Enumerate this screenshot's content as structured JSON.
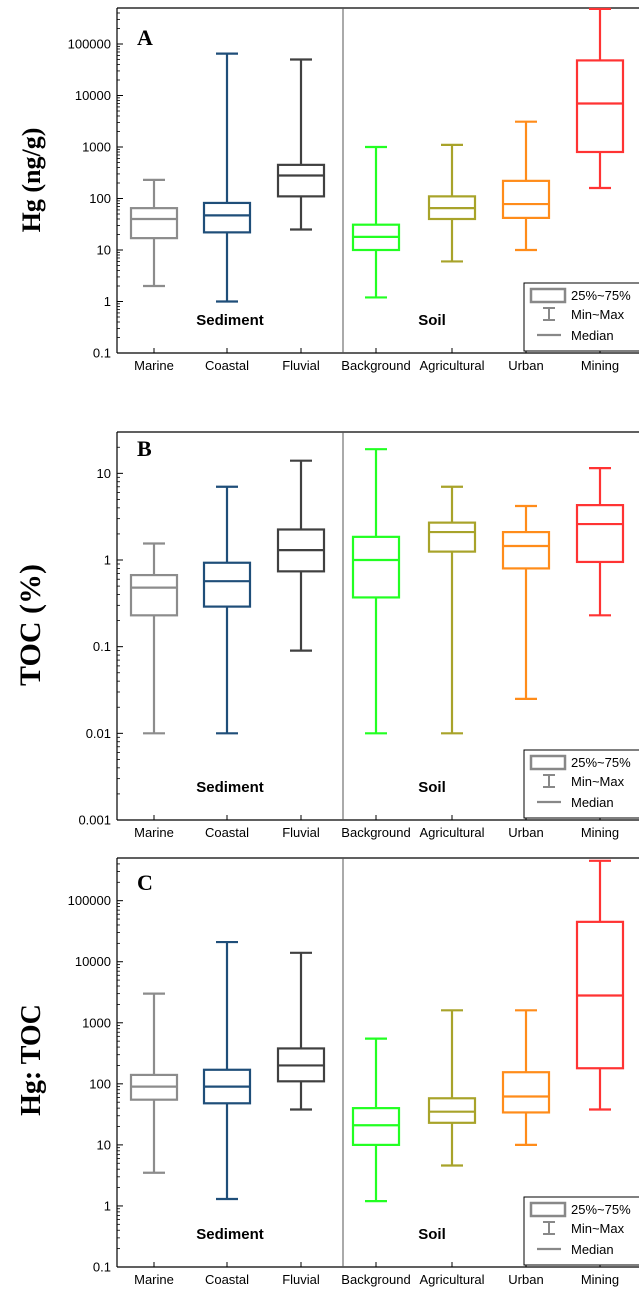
{
  "figure": {
    "group_labels": [
      "Sediment",
      "Soil"
    ],
    "legend": {
      "box": "25%~75%",
      "whisker": "Min~Max",
      "median": "Median"
    }
  },
  "chart_data": [
    {
      "type": "box",
      "panel": "A",
      "ylabel": "Hg (ng/g)",
      "yscale": "log",
      "ylim": [
        0.1,
        500000
      ],
      "yticks": [
        0.1,
        1,
        10,
        100,
        1000,
        10000,
        100000
      ],
      "ytick_labels": [
        "0.1",
        "1",
        "10",
        "100",
        "1000",
        "10000",
        "100000"
      ],
      "categories": [
        "Marine",
        "Coastal",
        "Fluvial",
        "Background",
        "Agricultural",
        "Urban",
        "Mining"
      ],
      "colors": [
        "#8c8c8c",
        "#1f4e79",
        "#404040",
        "#22ff22",
        "#a8a32a",
        "#ff8c1a",
        "#ff3333"
      ],
      "series": [
        {
          "min": 2,
          "q1": 17,
          "median": 40,
          "q3": 65,
          "max": 230
        },
        {
          "min": 1,
          "q1": 22,
          "median": 47,
          "q3": 82,
          "max": 65000
        },
        {
          "min": 25,
          "q1": 110,
          "median": 280,
          "q3": 450,
          "max": 50000
        },
        {
          "min": 1.2,
          "q1": 10,
          "median": 18,
          "q3": 31,
          "max": 1000
        },
        {
          "min": 6,
          "q1": 40,
          "median": 65,
          "q3": 110,
          "max": 1100
        },
        {
          "min": 10,
          "q1": 42,
          "median": 78,
          "q3": 220,
          "max": 3100
        },
        {
          "min": 160,
          "q1": 800,
          "median": 7000,
          "q3": 48000,
          "max": 480000
        }
      ]
    },
    {
      "type": "box",
      "panel": "B",
      "ylabel": "TOC (%)",
      "yscale": "log",
      "ylim": [
        0.001,
        30
      ],
      "yticks": [
        0.001,
        0.01,
        0.1,
        1,
        10
      ],
      "ytick_labels": [
        "0.001",
        "0.01",
        "0.1",
        "1",
        "10"
      ],
      "categories": [
        "Marine",
        "Coastal",
        "Fluvial",
        "Background",
        "Agricultural",
        "Urban",
        "Mining"
      ],
      "colors": [
        "#8c8c8c",
        "#1f4e79",
        "#404040",
        "#22ff22",
        "#a8a32a",
        "#ff8c1a",
        "#ff3333"
      ],
      "series": [
        {
          "min": 0.01,
          "q1": 0.23,
          "median": 0.48,
          "q3": 0.67,
          "max": 1.55
        },
        {
          "min": 0.01,
          "q1": 0.29,
          "median": 0.57,
          "q3": 0.93,
          "max": 7
        },
        {
          "min": 0.09,
          "q1": 0.74,
          "median": 1.3,
          "q3": 2.25,
          "max": 14
        },
        {
          "min": 0.01,
          "q1": 0.37,
          "median": 1.0,
          "q3": 1.85,
          "max": 19
        },
        {
          "min": 0.01,
          "q1": 1.25,
          "median": 2.1,
          "q3": 2.7,
          "max": 7
        },
        {
          "min": 0.025,
          "q1": 0.8,
          "median": 1.45,
          "q3": 2.1,
          "max": 4.2
        },
        {
          "min": 0.23,
          "q1": 0.95,
          "median": 2.6,
          "q3": 4.3,
          "max": 11.5
        }
      ]
    },
    {
      "type": "box",
      "panel": "C",
      "ylabel": "Hg: TOC",
      "yscale": "log",
      "ylim": [
        0.1,
        500000
      ],
      "yticks": [
        0.1,
        1,
        10,
        100,
        1000,
        10000,
        100000
      ],
      "ytick_labels": [
        "0.1",
        "1",
        "10",
        "100",
        "1000",
        "10000",
        "100000"
      ],
      "categories": [
        "Marine",
        "Coastal",
        "Fluvial",
        "Background",
        "Agricultural",
        "Urban",
        "Mining"
      ],
      "colors": [
        "#8c8c8c",
        "#1f4e79",
        "#404040",
        "#22ff22",
        "#a8a32a",
        "#ff8c1a",
        "#ff3333"
      ],
      "series": [
        {
          "min": 3.5,
          "q1": 55,
          "median": 90,
          "q3": 140,
          "max": 3000
        },
        {
          "min": 1.3,
          "q1": 48,
          "median": 90,
          "q3": 170,
          "max": 21000
        },
        {
          "min": 38,
          "q1": 110,
          "median": 200,
          "q3": 380,
          "max": 14000
        },
        {
          "min": 1.2,
          "q1": 10,
          "median": 21,
          "q3": 40,
          "max": 550
        },
        {
          "min": 4.6,
          "q1": 23,
          "median": 35,
          "q3": 58,
          "max": 1600
        },
        {
          "min": 10,
          "q1": 34,
          "median": 62,
          "q3": 155,
          "max": 1600
        },
        {
          "min": 38,
          "q1": 180,
          "median": 2800,
          "q3": 45000,
          "max": 450000
        }
      ]
    }
  ]
}
